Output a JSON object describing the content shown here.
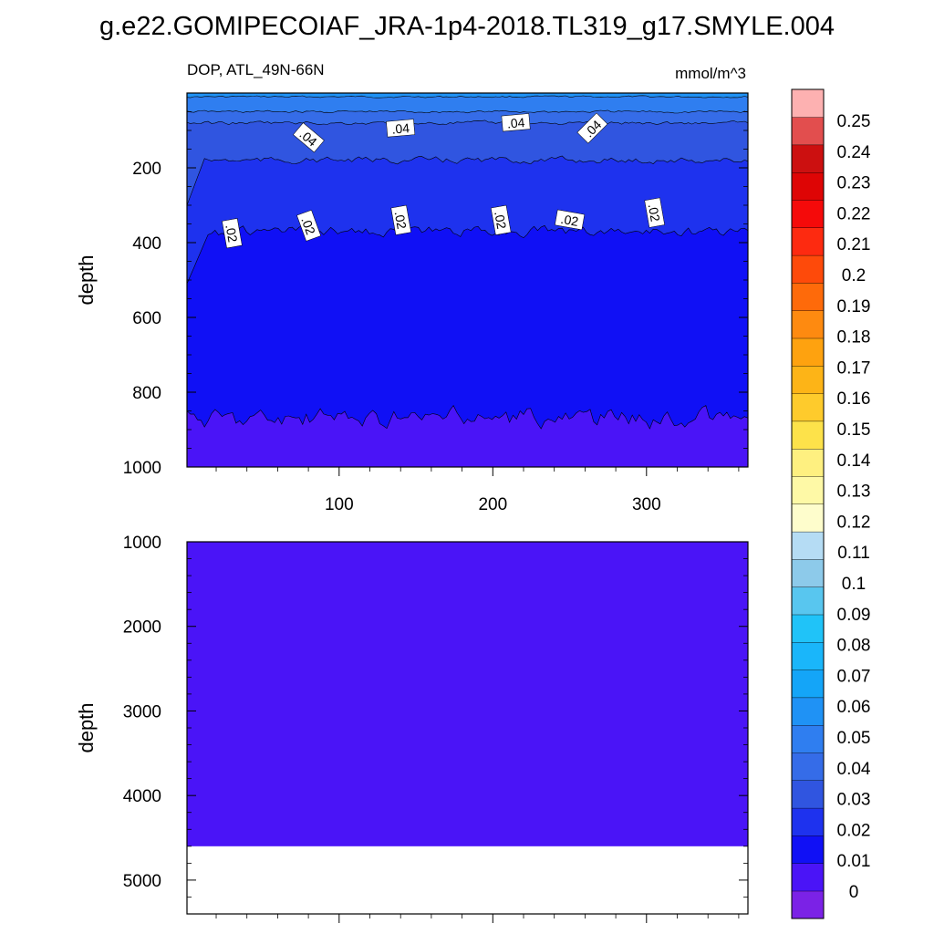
{
  "title": "g.e22.GOMIPECOIAF_JRA-1p4-2018.TL319_g17.SMYLE.004",
  "chart_data": {
    "type": "heatmap",
    "variable_label": "DOP, ATL_49N-66N",
    "units": "mmol/m^3",
    "xlim": [
      1,
      366
    ],
    "xticks": [
      100,
      200,
      300
    ],
    "contour_labels": [
      ".04",
      ".04",
      ".04",
      ".04",
      ".02",
      ".02",
      ".02",
      ".02",
      ".02",
      ".02"
    ],
    "colorbar": {
      "levels": [
        "0",
        "0.01",
        "0.02",
        "0.03",
        "0.04",
        "0.05",
        "0.06",
        "0.07",
        "0.08",
        "0.09",
        "0.1",
        "0.11",
        "0.12",
        "0.13",
        "0.14",
        "0.15",
        "0.16",
        "0.17",
        "0.18",
        "0.19",
        "0.2",
        "0.21",
        "0.22",
        "0.23",
        "0.24",
        "0.25"
      ],
      "colors": [
        "#7b22e6",
        "#4a14f7",
        "#1010f5",
        "#1e32ee",
        "#3055e0",
        "#356ce8",
        "#2f7ef0",
        "#1f92f5",
        "#14a5f8",
        "#1ab6fa",
        "#20c3f8",
        "#58c6ef",
        "#8dcaea",
        "#b5dcf4",
        "#fefdcc",
        "#fef9a6",
        "#fef080",
        "#fde24a",
        "#fecb2c",
        "#fdb417",
        "#fea20f",
        "#fe8a10",
        "#fe6a0a",
        "#fe4a0a",
        "#fd2a10",
        "#f50a0a",
        "#de0505",
        "#cc1010",
        "#e24e4e",
        "#fdb1b1"
      ]
    },
    "panels": [
      {
        "ylabel": "depth",
        "ylim": [
          0,
          1000
        ],
        "yticks": [
          200,
          400,
          600,
          800,
          1000
        ],
        "contours": [
          {
            "lower_bound_value": 0.06,
            "depth": 10
          },
          {
            "lower_bound_value": 0.05,
            "depth": 50
          },
          {
            "lower_bound_value": 0.04,
            "depth": 80
          },
          {
            "lower_bound_value": 0.03,
            "depth": 180
          },
          {
            "lower_bound_value": 0.02,
            "depth": 370
          },
          {
            "lower_bound_value": 0.01,
            "depth": 870
          },
          {
            "lower_bound_value": 0.0,
            "depth": 1000
          }
        ]
      },
      {
        "ylabel": "depth",
        "ylim": [
          1000,
          5400
        ],
        "yticks": [
          1000,
          2000,
          3000,
          4000,
          5000
        ],
        "data_bottom_depth": 4600,
        "fill_value": 0.0
      }
    ]
  }
}
